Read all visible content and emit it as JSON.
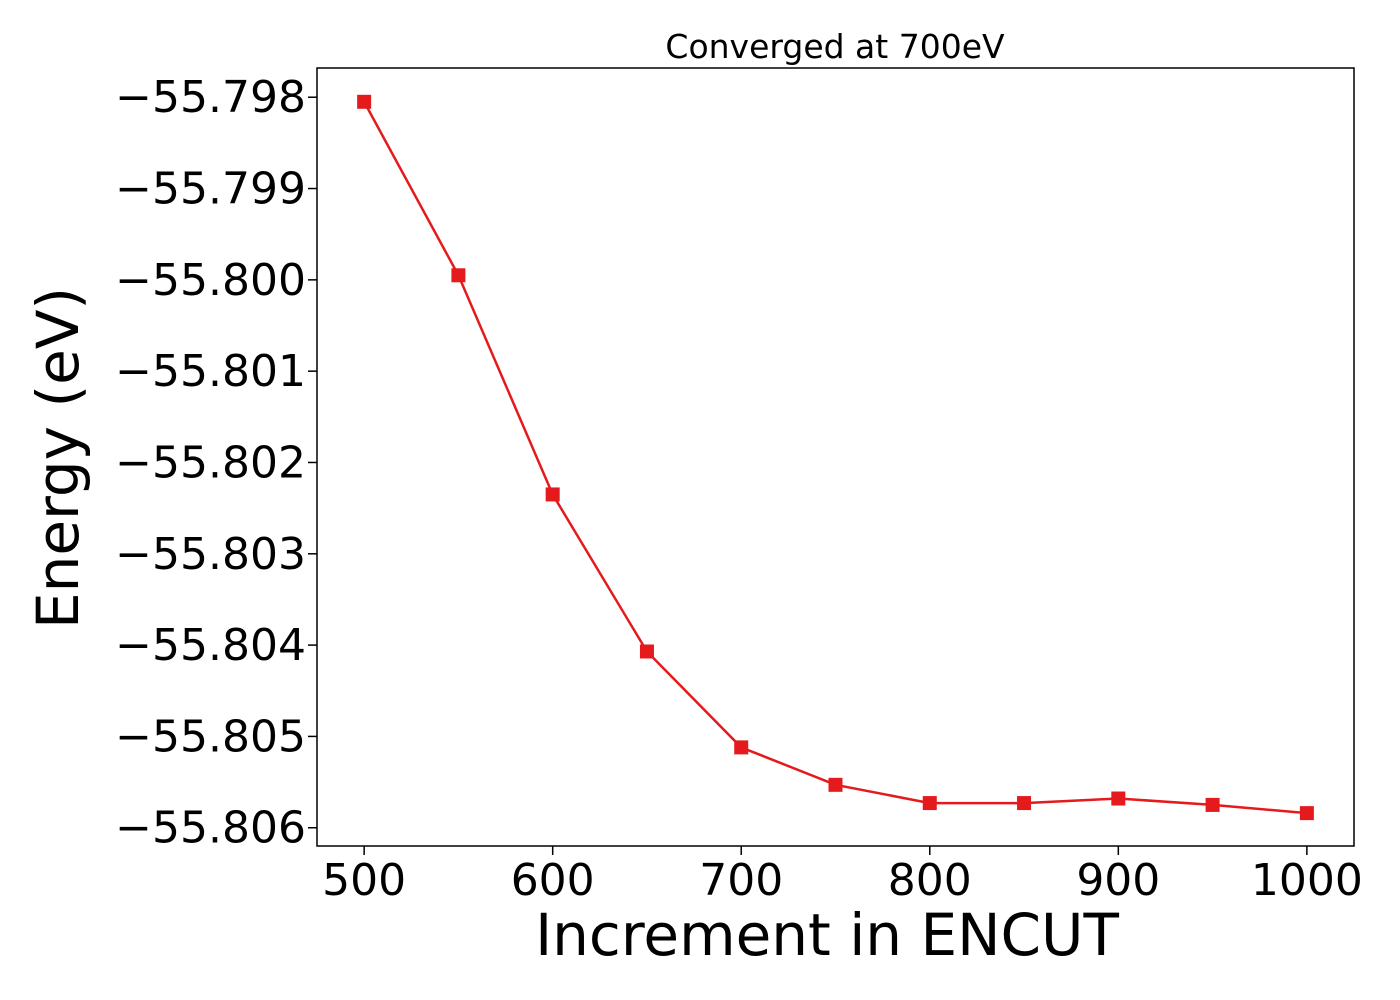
{
  "chart_data": {
    "type": "line",
    "title": "Converged at 700eV",
    "xlabel": "Increment in ENCUT",
    "ylabel": "Energy (eV)",
    "xlim": [
      475,
      1025
    ],
    "ylim": [
      -55.8062,
      -55.79768
    ],
    "x_ticks": [
      500,
      600,
      700,
      800,
      900,
      1000
    ],
    "x_tick_labels": [
      "500",
      "600",
      "700",
      "800",
      "900",
      "1000"
    ],
    "y_ticks": [
      -55.798,
      -55.799,
      -55.8,
      -55.801,
      -55.802,
      -55.803,
      -55.804,
      -55.805,
      -55.806
    ],
    "y_tick_labels": [
      "−55.798",
      "−55.799",
      "−55.800",
      "−55.801",
      "−55.802",
      "−55.803",
      "−55.804",
      "−55.805",
      "−55.806"
    ],
    "grid": false,
    "series": [
      {
        "marker": "square",
        "color": "#e41a1c",
        "x": [
          500,
          550,
          600,
          650,
          700,
          750,
          800,
          850,
          900,
          950,
          1000
        ],
        "y": [
          -55.79805,
          -55.79995,
          -55.80235,
          -55.80407,
          -55.80512,
          -55.80553,
          -55.80573,
          -55.80573,
          -55.80568,
          -55.80575,
          -55.80584
        ]
      }
    ]
  }
}
